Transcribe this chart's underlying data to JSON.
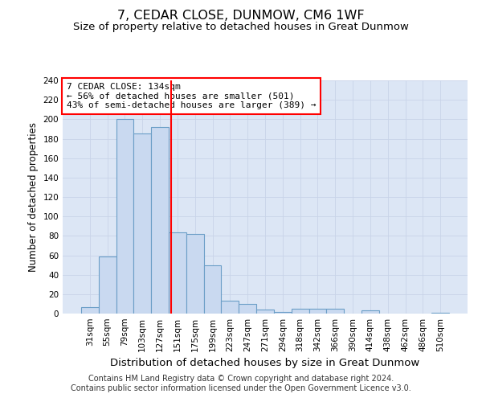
{
  "title": "7, CEDAR CLOSE, DUNMOW, CM6 1WF",
  "subtitle": "Size of property relative to detached houses in Great Dunmow",
  "xlabel": "Distribution of detached houses by size in Great Dunmow",
  "ylabel": "Number of detached properties",
  "bar_labels": [
    "31sqm",
    "55sqm",
    "79sqm",
    "103sqm",
    "127sqm",
    "151sqm",
    "175sqm",
    "199sqm",
    "223sqm",
    "247sqm",
    "271sqm",
    "294sqm",
    "318sqm",
    "342sqm",
    "366sqm",
    "390sqm",
    "414sqm",
    "438sqm",
    "462sqm",
    "486sqm",
    "510sqm"
  ],
  "bar_values": [
    7,
    59,
    200,
    185,
    192,
    84,
    82,
    50,
    13,
    10,
    4,
    2,
    5,
    5,
    5,
    0,
    3,
    0,
    0,
    0,
    1
  ],
  "bar_color": "#c9d9f0",
  "bar_edge_color": "#6b9ec7",
  "bar_edge_width": 0.8,
  "ylim": [
    0,
    240
  ],
  "yticks": [
    0,
    20,
    40,
    60,
    80,
    100,
    120,
    140,
    160,
    180,
    200,
    220,
    240
  ],
  "grid_color": "#c8d4e8",
  "background_color": "#dce6f5",
  "vline_x": 4.64,
  "vline_color": "red",
  "vline_linewidth": 1.5,
  "annotation_title": "7 CEDAR CLOSE: 134sqm",
  "annotation_line1": "← 56% of detached houses are smaller (501)",
  "annotation_line2": "43% of semi-detached houses are larger (389) →",
  "annotation_box_color": "white",
  "annotation_box_edge_color": "red",
  "footer_line1": "Contains HM Land Registry data © Crown copyright and database right 2024.",
  "footer_line2": "Contains public sector information licensed under the Open Government Licence v3.0.",
  "title_fontsize": 11.5,
  "subtitle_fontsize": 9.5,
  "xlabel_fontsize": 9.5,
  "ylabel_fontsize": 8.5,
  "tick_fontsize": 7.5,
  "annotation_fontsize": 8.0,
  "footer_fontsize": 7.0
}
